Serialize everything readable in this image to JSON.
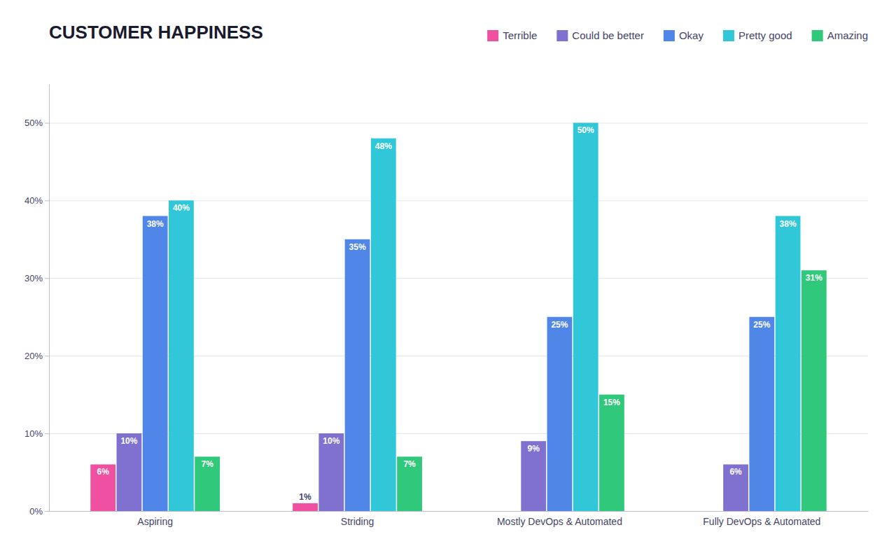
{
  "chart_data": {
    "type": "bar",
    "title": "CUSTOMER HAPPINESS",
    "categories": [
      "Aspiring",
      "Striding",
      "Mostly DevOps & Automated",
      "Fully DevOps & Automated"
    ],
    "series": [
      {
        "name": "Terrible",
        "color": "#f050a0",
        "values": [
          6,
          1,
          0,
          0
        ],
        "value_labels": [
          "6%",
          "1%",
          null,
          null
        ]
      },
      {
        "name": "Could be better",
        "color": "#8070d0",
        "values": [
          10,
          10,
          9,
          6
        ],
        "value_labels": [
          "10%",
          "10%",
          "9%",
          "6%"
        ]
      },
      {
        "name": "Okay",
        "color": "#4f86e8",
        "values": [
          38,
          35,
          25,
          25
        ],
        "value_labels": [
          "38%",
          "35%",
          "25%",
          "25%"
        ]
      },
      {
        "name": "Pretty good",
        "color": "#30c8d8",
        "values": [
          40,
          48,
          50,
          38
        ],
        "value_labels": [
          "40%",
          "48%",
          "50%",
          "38%"
        ]
      },
      {
        "name": "Amazing",
        "color": "#30c87a",
        "values": [
          7,
          7,
          15,
          31
        ],
        "value_labels": [
          "7%",
          "7%",
          "15%",
          "31%"
        ]
      }
    ],
    "ylim": [
      0,
      55
    ],
    "yticks": [
      {
        "value": 0,
        "label": "0%"
      },
      {
        "value": 10,
        "label": "10%"
      },
      {
        "value": 20,
        "label": "20%"
      },
      {
        "value": 30,
        "label": "30%"
      },
      {
        "value": 40,
        "label": "40%"
      },
      {
        "value": 50,
        "label": "50%"
      }
    ],
    "grid": true,
    "legend": "top",
    "data_labels": true
  }
}
